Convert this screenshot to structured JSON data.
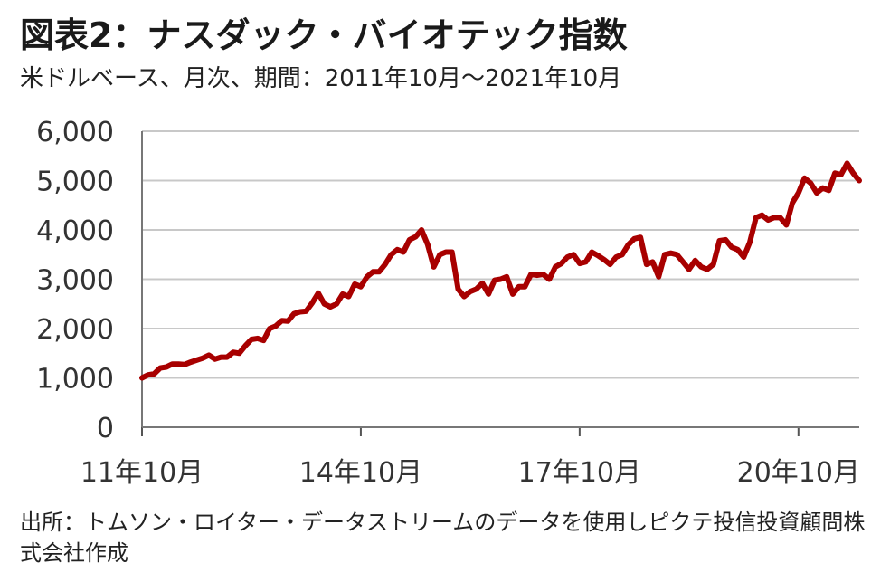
{
  "header": {
    "title": "図表2：ナスダック・バイオテック指数",
    "subtitle": "米ドルベース、月次、期間：2011年10月～2021年10月"
  },
  "footer": {
    "source": "出所：トムソン・ロイター・データストリームのデータを使用しピクテ投信投資顧問株式会社作成"
  },
  "chart_data": {
    "type": "line",
    "title": "図表2：ナスダック・バイオテック指数",
    "subtitle": "米ドルベース、月次、期間：2011年10月～2021年10月",
    "xlabel": "",
    "ylabel": "",
    "ylim": [
      0,
      6000
    ],
    "yticks": [
      "0",
      "1,000",
      "2,000",
      "3,000",
      "4,000",
      "5,000",
      "6,000"
    ],
    "xticks": [
      "11年10月",
      "14年10月",
      "17年10月",
      "20年10月"
    ],
    "grid": true,
    "series_color": "#a80000",
    "series": [
      {
        "values": [
          1000,
          1060,
          1080,
          1200,
          1220,
          1280,
          1280,
          1270,
          1320,
          1360,
          1400,
          1460,
          1380,
          1420,
          1420,
          1520,
          1500,
          1650,
          1780,
          1800,
          1760,
          2000,
          2050,
          2160,
          2150,
          2300,
          2340,
          2350,
          2520,
          2720,
          2500,
          2440,
          2500,
          2700,
          2650,
          2900,
          2850,
          3050,
          3150,
          3150,
          3300,
          3500,
          3600,
          3550,
          3800,
          3860,
          4000,
          3700,
          3250,
          3500,
          3550,
          3550,
          2800,
          2650,
          2750,
          2800,
          2920,
          2700,
          2980,
          3000,
          3050,
          2700,
          2850,
          2850,
          3100,
          3080,
          3100,
          3000,
          3250,
          3320,
          3450,
          3500,
          3320,
          3350,
          3550,
          3480,
          3400,
          3300,
          3450,
          3500,
          3700,
          3820,
          3850,
          3300,
          3350,
          3050,
          3500,
          3530,
          3500,
          3350,
          3200,
          3380,
          3250,
          3200,
          3300,
          3780,
          3800,
          3650,
          3600,
          3450,
          3750,
          4250,
          4300,
          4200,
          4250,
          4250,
          4100,
          4550,
          4750,
          5050,
          4950,
          4750,
          4850,
          4800,
          5150,
          5120,
          5350,
          5150,
          5000
        ]
      }
    ]
  }
}
